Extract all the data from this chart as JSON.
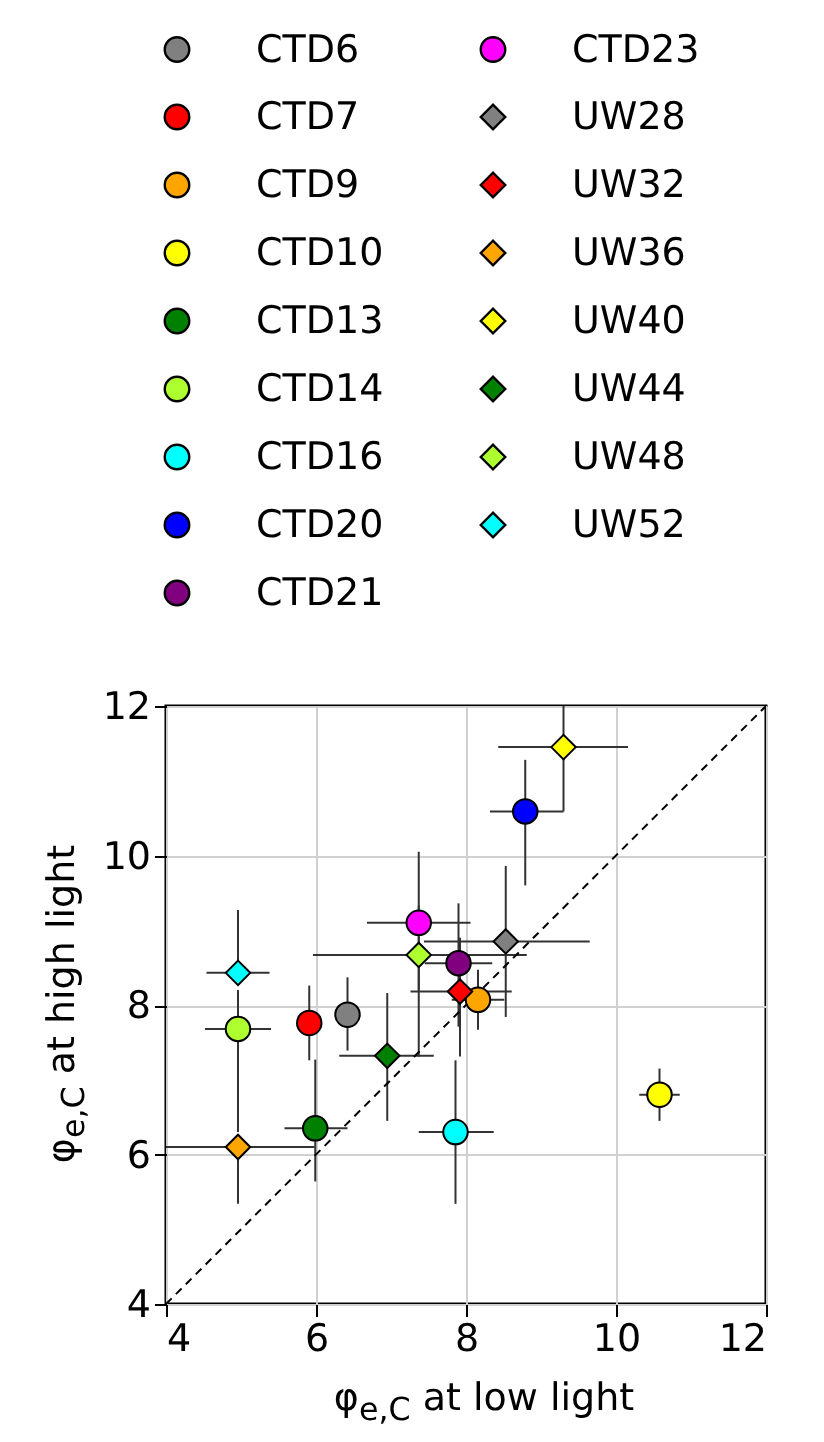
{
  "chart_data": {
    "type": "scatter",
    "xlabel": "φ$_{e,C}$  at low light",
    "ylabel": "φ$_{e,C}$  at high light",
    "xlim": [
      4,
      12
    ],
    "ylim": [
      4,
      12
    ],
    "xticks": [
      4,
      6,
      8,
      10,
      12
    ],
    "yticks": [
      4,
      6,
      8,
      10,
      12
    ],
    "grid": true,
    "legend": "top",
    "series": [
      {
        "name": "CTD6",
        "color": "#808080",
        "marker": "circle",
        "x": [
          6.42
        ],
        "values": [
          7.87
        ],
        "errors": [
          [
            7.39,
            8.37
          ]
        ]
      },
      {
        "name": "CTD7",
        "color": "#ff0000",
        "marker": "circle",
        "x": [
          5.91
        ],
        "values": [
          7.76
        ],
        "errors": [
          0.5
        ]
      },
      {
        "name": "CTD9",
        "color": "#ffa500",
        "marker": "circle",
        "x": [
          8.16
        ],
        "values": [
          8.07
        ],
        "errors": [
          0.4
        ],
        "xerrors": [
          0.35
        ]
      },
      {
        "name": "CTD10",
        "color": "#ffff00",
        "marker": "circle",
        "x": [
          10.58
        ],
        "values": [
          6.8
        ],
        "errors": [
          0.35
        ],
        "xerrors": [
          0.27
        ]
      },
      {
        "name": "CTD13",
        "color": "#008000",
        "marker": "circle",
        "x": [
          5.99
        ],
        "values": [
          6.35
        ],
        "errors": [
          [
            5.64,
            7.27
          ]
        ],
        "xerrors": [
          [
            5.58,
            6.42
          ]
        ]
      },
      {
        "name": "CTD14",
        "color": "#adff2f",
        "marker": "circle",
        "x": [
          4.96
        ],
        "values": [
          7.68
        ],
        "errors": [
          [
            6.3,
            8.2
          ]
        ],
        "xerrors": [
          0.44
        ]
      },
      {
        "name": "CTD16",
        "color": "#00ffff",
        "marker": "circle",
        "x": [
          7.86
        ],
        "values": [
          6.3
        ],
        "errors": [
          [
            5.34,
            7.26
          ]
        ],
        "xerrors": [
          [
            7.37,
            8.37
          ]
        ]
      },
      {
        "name": "CTD20",
        "color": "#0000ff",
        "marker": "circle",
        "x": [
          8.79
        ],
        "values": [
          10.59
        ],
        "errors": [
          [
            9.6,
            11.28
          ]
        ],
        "xerrors": [
          [
            8.32,
            9.3
          ]
        ]
      },
      {
        "name": "CTD21",
        "color": "#800080",
        "marker": "circle",
        "x": [
          7.9
        ],
        "values": [
          8.56
        ],
        "errors": [
          [
            7.71,
            9.36
          ]
        ],
        "xerrors": [
          0.45
        ]
      },
      {
        "name": "CTD23",
        "color": "#ff00ff",
        "marker": "circle",
        "x": [
          7.37
        ],
        "values": [
          9.1
        ],
        "errors": [
          [
            8.2,
            10.05
          ]
        ],
        "xerrors": [
          [
            6.68,
            8.06
          ]
        ]
      },
      {
        "name": "UW28",
        "color": "#808080",
        "marker": "diamond",
        "x": [
          8.53
        ],
        "values": [
          8.85
        ],
        "errors": [
          [
            7.84,
            9.86
          ]
        ],
        "xerrors": [
          [
            7.44,
            9.65
          ]
        ]
      },
      {
        "name": "UW32",
        "color": "#ff0000",
        "marker": "diamond",
        "x": [
          7.92
        ],
        "values": [
          8.18
        ],
        "errors": [
          [
            7.31,
            8.9
          ]
        ],
        "xerrors": [
          [
            7.26,
            8.61
          ]
        ]
      },
      {
        "name": "UW36",
        "color": "#ffa500",
        "marker": "diamond",
        "x": [
          4.96
        ],
        "values": [
          6.1
        ],
        "errors": [
          [
            5.34,
            6.1
          ]
        ],
        "xerrors": [
          [
            4.0,
            5.98
          ]
        ]
      },
      {
        "name": "UW40",
        "color": "#ffff00",
        "marker": "diamond",
        "x": [
          9.3
        ],
        "values": [
          11.45
        ],
        "errors": [
          [
            10.59,
            12.0
          ]
        ],
        "xerrors": [
          [
            8.43,
            10.16
          ]
        ]
      },
      {
        "name": "UW44",
        "color": "#008000",
        "marker": "diamond",
        "x": [
          6.95
        ],
        "values": [
          7.32
        ],
        "errors": [
          [
            6.45,
            8.16
          ]
        ],
        "xerrors": [
          [
            6.31,
            7.57
          ]
        ]
      },
      {
        "name": "UW48",
        "color": "#adff2f",
        "marker": "diamond",
        "x": [
          7.37
        ],
        "values": [
          8.67
        ],
        "errors": [
          [
            7.31,
            9.33
          ]
        ],
        "xerrors": [
          [
            5.96,
            8.81
          ]
        ]
      },
      {
        "name": "UW52",
        "color": "#00ffff",
        "marker": "diamond",
        "x": [
          4.96
        ],
        "values": [
          8.43
        ],
        "errors": [
          [
            8.43,
            9.27
          ]
        ],
        "xerrors": [
          0.42
        ]
      },
      {
        "type": "line",
        "color": "#000000",
        "line_style": "dashed",
        "marker": "none",
        "x": [
          4,
          12
        ],
        "values": [
          4,
          12
        ]
      }
    ]
  }
}
